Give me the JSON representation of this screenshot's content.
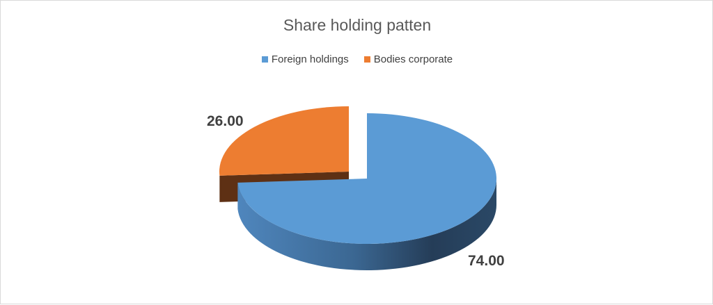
{
  "chart_data": {
    "type": "pie",
    "style": "3d-exploded",
    "title": "Share holding patten",
    "categories": [
      "Foreign holdings",
      "Bodies corporate"
    ],
    "values": [
      74.0,
      26.0
    ],
    "data_labels": [
      "74.00",
      "26.00"
    ],
    "colors": [
      "#5b9bd5",
      "#ed7d31"
    ],
    "exploded": "Bodies corporate",
    "legend_position": "top"
  }
}
